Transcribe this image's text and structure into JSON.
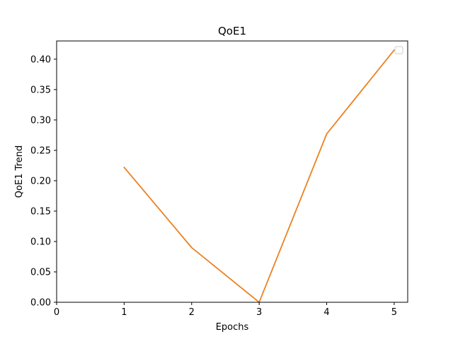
{
  "chart_data": {
    "type": "line",
    "title": "QoE1",
    "xlabel": "Epochs",
    "ylabel": "QoE1 Trend",
    "x": [
      1,
      2,
      3,
      4,
      5
    ],
    "xlim": [
      0,
      5.2
    ],
    "ylim": [
      0,
      0.43
    ],
    "xticks": [
      0,
      1,
      2,
      3,
      4,
      5
    ],
    "xtick_labels": [
      "0",
      "1",
      "2",
      "3",
      "4",
      "5"
    ],
    "yticks": [
      0,
      0.05,
      0.1,
      0.15,
      0.2,
      0.25,
      0.3,
      0.35,
      0.4
    ],
    "ytick_labels": [
      "0.00",
      "0.05",
      "0.10",
      "0.15",
      "0.20",
      "0.25",
      "0.30",
      "0.35",
      "0.40"
    ],
    "series": [
      {
        "values": [
          0.222,
          0.09,
          0.0,
          0.277,
          0.415
        ],
        "color": "#1f77b4"
      },
      {
        "values": [
          0.222,
          0.09,
          0.0,
          0.277,
          0.415
        ],
        "color": "#ff7f0e"
      }
    ],
    "grid": false,
    "legend": {
      "location": "upper right",
      "entries": []
    }
  }
}
